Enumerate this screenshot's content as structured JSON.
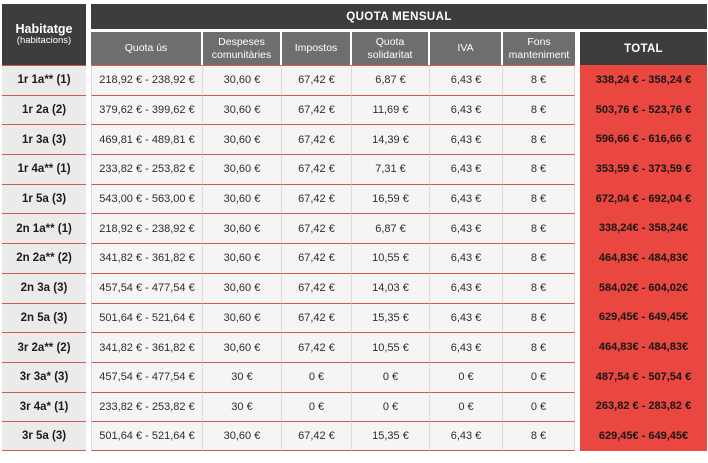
{
  "colors": {
    "header_dark": "#3D3D3D",
    "header_gray": "#6E6E6E",
    "total_red": "#E9473F",
    "divider_red": "#D15757",
    "label_bg": "#EBEBEB",
    "cell_bg": "#F5F5F5"
  },
  "table": {
    "corner_header": {
      "title": "Habitatge",
      "subtitle": "(habitacions)"
    },
    "group_header": "QUOTA MENSUAL",
    "columns": [
      "Quota ús",
      "Despeses comunitàries",
      "Impostos",
      "Quota solidaritat",
      "IVA",
      "Fons manteniment"
    ],
    "total_header": "TOTAL",
    "rows": [
      {
        "label": "1r 1a** (1)",
        "values": [
          "218,92 € - 238,92 €",
          "30,60 €",
          "67,42 €",
          "6,87 €",
          "6,43 €",
          "8 €"
        ],
        "total": "338,24 € - 358,24 €"
      },
      {
        "label": "1r 2a (2)",
        "values": [
          "379,62 € - 399,62 €",
          "30,60 €",
          "67,42 €",
          "11,69 €",
          "6,43 €",
          "8 €"
        ],
        "total": "503,76 € - 523,76 €"
      },
      {
        "label": "1r 3a (3)",
        "values": [
          "469,81 € - 489,81 €",
          "30,60 €",
          "67,42 €",
          "14,39 €",
          "6,43 €",
          "8 €"
        ],
        "total": "596,66 € - 616,66 €"
      },
      {
        "label": "1r 4a** (1)",
        "values": [
          "233,82 € - 253,82 €",
          "30,60 €",
          "67,42 €",
          "7,31 €",
          "6,43 €",
          "8 €"
        ],
        "total": "353,59 € - 373,59 €"
      },
      {
        "label": "1r 5a (3)",
        "values": [
          "543,00 € - 563,00 €",
          "30,60 €",
          "67,42 €",
          "16,59 €",
          "6,43 €",
          "8 €"
        ],
        "total": "672,04 € - 692,04 €"
      },
      {
        "label": "2n 1a** (1)",
        "values": [
          "218,92 € - 238,92 €",
          "30,60 €",
          "67,42 €",
          "6,87 €",
          "6,43 €",
          "8 €"
        ],
        "total": "338,24€ - 358,24€"
      },
      {
        "label": "2n 2a** (2)",
        "values": [
          "341,82 € - 361,82 €",
          "30,60 €",
          "67,42 €",
          "10,55 €",
          "6,43 €",
          "8 €"
        ],
        "total": "464,83€ - 484,83€"
      },
      {
        "label": "2n 3a (3)",
        "values": [
          "457,54 € - 477,54 €",
          "30,60 €",
          "67,42 €",
          "14,03 €",
          "6,43 €",
          "8 €"
        ],
        "total": "584,02€ - 604,02€"
      },
      {
        "label": "2n 5a (3)",
        "values": [
          "501,64 € - 521,64 €",
          "30,60 €",
          "67,42 €",
          "15,35 €",
          "6,43 €",
          "8 €"
        ],
        "total": "629,45€ - 649,45€"
      },
      {
        "label": "3r 2a** (2)",
        "values": [
          "341,82 € - 361,82 €",
          "30,60 €",
          "67,42 €",
          "10,55 €",
          "6,43 €",
          "8 €"
        ],
        "total": "464,83€ - 484,83€"
      },
      {
        "label": "3r 3a* (3)",
        "values": [
          "457,54 € - 477,54 €",
          "30 €",
          "0 €",
          "0 €",
          "0 €",
          "0 €"
        ],
        "total": "487,54 € - 507,54 €"
      },
      {
        "label": "3r 4a* (1)",
        "values": [
          "233,82 € - 253,82 €",
          "30 €",
          "0 €",
          "0 €",
          "0 €",
          "0 €"
        ],
        "total": "263,82 € - 283,82 €"
      },
      {
        "label": "3r 5a (3)",
        "values": [
          "501,64 € - 521,64 €",
          "30,60 €",
          "67,42 €",
          "15,35 €",
          "6,43 €",
          "8 €"
        ],
        "total": "629,45€ - 649,45€"
      }
    ]
  }
}
